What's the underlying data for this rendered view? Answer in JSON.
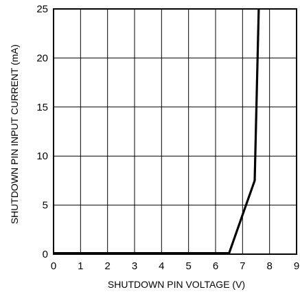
{
  "chart_data": {
    "type": "line",
    "title": "",
    "xlabel": "SHUTDOWN PIN VOLTAGE (V)",
    "ylabel": "SHUTDOWN PIN INPUT CURRENT (mA)",
    "xlim": [
      0,
      9
    ],
    "ylim": [
      0,
      25
    ],
    "x_ticks": [
      "0",
      "1",
      "2",
      "3",
      "4",
      "5",
      "6",
      "7",
      "8",
      "9"
    ],
    "y_ticks": [
      "0",
      "5",
      "10",
      "15",
      "20",
      "25"
    ],
    "grid": true,
    "series": [
      {
        "x": [
          0,
          6.5,
          7.0,
          7.45,
          7.6
        ],
        "y": [
          0.1,
          0.1,
          4.0,
          7.5,
          25
        ]
      }
    ]
  }
}
